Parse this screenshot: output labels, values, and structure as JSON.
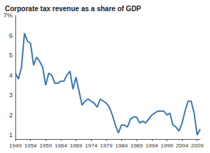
{
  "chart_data": {
    "type": "line",
    "title": "Corporate tax revenue as a share of GDP",
    "x": [
      1949,
      1950,
      1951,
      1952,
      1953,
      1954,
      1955,
      1956,
      1957,
      1958,
      1959,
      1960,
      1961,
      1962,
      1963,
      1964,
      1965,
      1966,
      1967,
      1968,
      1969,
      1970,
      1971,
      1972,
      1973,
      1974,
      1975,
      1976,
      1977,
      1978,
      1979,
      1980,
      1981,
      1982,
      1983,
      1984,
      1985,
      1986,
      1987,
      1988,
      1989,
      1990,
      1991,
      1992,
      1993,
      1994,
      1995,
      1996,
      1997,
      1998,
      1999,
      2000,
      2001,
      2002,
      2003,
      2004,
      2005,
      2006,
      2007,
      2008,
      2009,
      2010
    ],
    "values": [
      4.1,
      3.8,
      4.4,
      6.1,
      5.7,
      5.6,
      4.5,
      4.9,
      4.7,
      4.4,
      3.5,
      4.1,
      4.0,
      3.6,
      3.6,
      3.7,
      3.7,
      4.0,
      4.2,
      3.3,
      3.9,
      3.2,
      2.5,
      2.7,
      2.8,
      2.7,
      2.6,
      2.4,
      2.8,
      2.7,
      2.6,
      2.4,
      2.0,
      1.5,
      1.1,
      1.5,
      1.5,
      1.4,
      1.8,
      1.9,
      1.9,
      1.6,
      1.7,
      1.6,
      1.8,
      2.0,
      2.1,
      2.2,
      2.2,
      2.2,
      2.0,
      2.1,
      1.5,
      1.4,
      1.2,
      1.6,
      2.2,
      2.7,
      2.7,
      2.1,
      1.0,
      1.3
    ],
    "color": "#3a76b6",
    "xlim": [
      1949,
      2010
    ],
    "xticks": [
      1949,
      1954,
      1959,
      1964,
      1969,
      1974,
      1979,
      1984,
      1989,
      1994,
      1999,
      2004,
      2009
    ],
    "ylim": [
      0.8,
      7
    ],
    "yticks": [
      1,
      2,
      3,
      4,
      5,
      6,
      {
        "value": 7,
        "label": "7%"
      }
    ],
    "grid": false
  }
}
